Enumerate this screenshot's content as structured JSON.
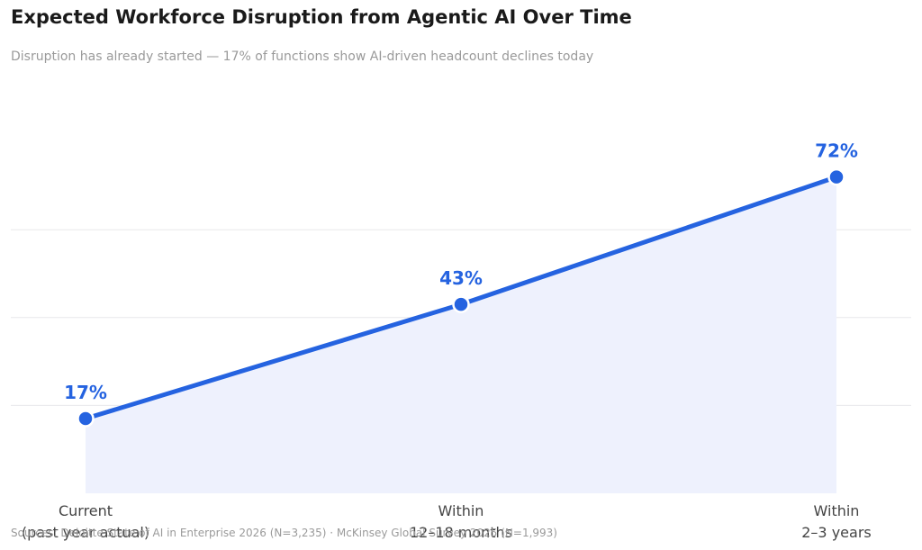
{
  "title": "Expected Workforce Disruption from Agentic AI Over Time",
  "subtitle": "Disruption has already started — 17% of functions show AI-driven headcount declines today",
  "source": "Sources: Deloitte State of AI in Enterprise 2026 (N=3,235)  ·  McKinsey Global Survey 2025 (N=1,993)",
  "colors": {
    "line": "#2563e0",
    "fill": "#eef1fd",
    "grid": "#e8e8ec",
    "label": "#2563e0"
  },
  "chart_data": {
    "type": "area",
    "categories": [
      [
        "Current",
        "(past year actual)"
      ],
      [
        "Within",
        "12–18 months"
      ],
      [
        "Within",
        "2–3 years"
      ]
    ],
    "values": [
      17,
      43,
      72
    ],
    "value_labels": [
      "17%",
      "43%",
      "72%"
    ],
    "ylim": [
      0,
      80
    ],
    "grid": true,
    "gridlines": [
      20,
      40,
      60
    ]
  }
}
